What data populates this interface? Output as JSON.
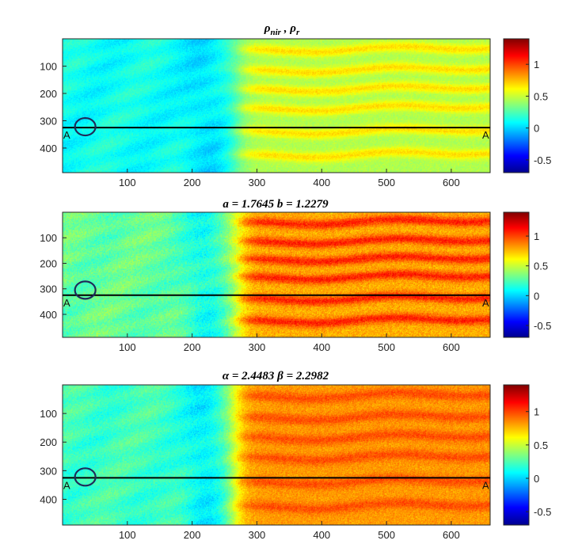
{
  "colormap": "jet",
  "colors": {
    "axis": "#262626",
    "profile_line": "#000000",
    "circle": "#1f2a5a",
    "low": "#00008f",
    "high": "#800000"
  },
  "chart_data": [
    {
      "type": "heatmap",
      "title": "ρnir , ρr",
      "title_parts": [
        {
          "text": "ρ",
          "sub": "nir"
        },
        {
          "text": " , ",
          "sub": ""
        },
        {
          "text": "ρ",
          "sub": "r"
        }
      ],
      "x_ticks": [
        "100",
        "200",
        "300",
        "400",
        "500",
        "600"
      ],
      "x_tick_values": [
        100,
        200,
        300,
        400,
        500,
        600
      ],
      "xlim": [
        0,
        660
      ],
      "y_ticks": [
        "100",
        "200",
        "300",
        "400"
      ],
      "y_tick_values": [
        100,
        200,
        300,
        400
      ],
      "ylim": [
        0,
        490
      ],
      "clim": [
        -0.7,
        1.4
      ],
      "colorbar_ticks": [
        "1",
        "0.5",
        "0",
        "-0.5"
      ],
      "colorbar_tick_values": [
        1,
        0.5,
        0,
        -0.5
      ],
      "profile_row": 325,
      "profile_label_left": "A",
      "profile_label_right": "A",
      "circle_center": [
        35,
        322
      ],
      "field_description": {
        "left_value": 0.12,
        "left_trough_value": 0.03,
        "right_base_value": 0.45,
        "right_stripe_value": 0.68,
        "transition_x": 270,
        "noise": 0.07,
        "stripe_rows": [
          45,
          120,
          190,
          260,
          345,
          430
        ]
      }
    },
    {
      "type": "heatmap",
      "title": "a = 1.7645  b = 1.2279",
      "title_parts": [
        {
          "text": "a = 1.7645  b = 1.2279",
          "sub": ""
        }
      ],
      "x_ticks": [
        "100",
        "200",
        "300",
        "400",
        "500",
        "600"
      ],
      "x_tick_values": [
        100,
        200,
        300,
        400,
        500,
        600
      ],
      "xlim": [
        0,
        660
      ],
      "y_ticks": [
        "100",
        "200",
        "300",
        "400"
      ],
      "y_tick_values": [
        100,
        200,
        300,
        400
      ],
      "ylim": [
        0,
        490
      ],
      "clim": [
        -0.7,
        1.4
      ],
      "colorbar_ticks": [
        "1",
        "0.5",
        "0",
        "-0.5"
      ],
      "colorbar_tick_values": [
        1,
        0.5,
        0,
        -0.5
      ],
      "profile_row": 325,
      "profile_label_left": "A",
      "profile_label_right": "A",
      "circle_center": [
        35,
        305
      ],
      "field_description": {
        "left_value": 0.3,
        "left_trough_value": 0.12,
        "right_base_value": 0.78,
        "right_stripe_value": 1.08,
        "transition_x": 270,
        "noise": 0.12,
        "stripe_rows": [
          45,
          120,
          190,
          260,
          345,
          430
        ]
      }
    },
    {
      "type": "heatmap",
      "title": "α = 2.4483  β = 2.2982",
      "title_parts": [
        {
          "text": "α = 2.4483  β = 2.2982",
          "sub": ""
        }
      ],
      "x_ticks": [
        "100",
        "200",
        "300",
        "400",
        "500",
        "600"
      ],
      "x_tick_values": [
        100,
        200,
        300,
        400,
        500,
        600
      ],
      "xlim": [
        0,
        660
      ],
      "y_ticks": [
        "100",
        "200",
        "300",
        "400"
      ],
      "y_tick_values": [
        100,
        200,
        300,
        400
      ],
      "ylim": [
        0,
        490
      ],
      "clim": [
        -0.7,
        1.4
      ],
      "colorbar_ticks": [
        "1",
        "0.5",
        "0",
        "-0.5"
      ],
      "colorbar_tick_values": [
        1,
        0.5,
        0,
        -0.5
      ],
      "profile_row": 325,
      "profile_label_left": "A",
      "profile_label_right": "A",
      "circle_center": [
        35,
        322
      ],
      "field_description": {
        "left_value": 0.22,
        "left_trough_value": 0.06,
        "right_base_value": 0.82,
        "right_stripe_value": 0.98,
        "transition_x": 265,
        "noise": 0.1,
        "stripe_rows": [
          45,
          120,
          190,
          260,
          345,
          430
        ]
      }
    }
  ]
}
